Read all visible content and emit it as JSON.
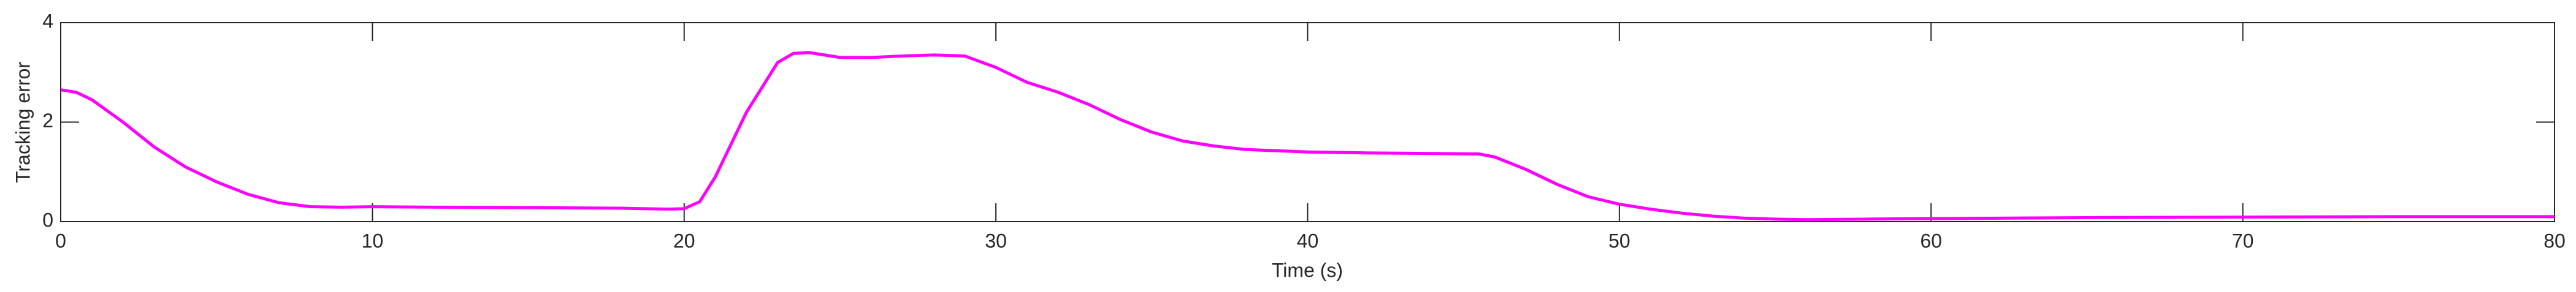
{
  "chart_data": {
    "type": "line",
    "x_label": "Time (s)",
    "y_label": "Tracking error",
    "x": [
      0,
      0.5,
      1,
      2,
      3,
      4,
      5,
      6,
      7,
      8,
      9,
      10,
      12,
      15,
      18,
      19.5,
      20,
      20.5,
      21,
      22,
      23,
      23.5,
      24,
      25,
      26,
      27,
      28,
      29,
      30,
      31,
      32,
      33,
      34,
      35,
      36,
      37,
      38,
      40,
      42,
      44,
      45.5,
      46,
      47,
      48,
      49,
      50,
      51,
      52,
      53,
      54,
      55,
      56,
      58,
      60,
      65,
      70,
      75,
      80
    ],
    "series": [
      {
        "color": "#ff00ff",
        "values": [
          2.65,
          2.6,
          2.45,
          2.0,
          1.5,
          1.1,
          0.8,
          0.55,
          0.38,
          0.3,
          0.29,
          0.3,
          0.29,
          0.28,
          0.27,
          0.25,
          0.26,
          0.4,
          0.9,
          2.2,
          3.2,
          3.38,
          3.4,
          3.3,
          3.3,
          3.33,
          3.35,
          3.33,
          3.1,
          2.8,
          2.6,
          2.35,
          2.05,
          1.8,
          1.62,
          1.52,
          1.45,
          1.4,
          1.38,
          1.37,
          1.36,
          1.3,
          1.05,
          0.75,
          0.5,
          0.35,
          0.25,
          0.17,
          0.11,
          0.07,
          0.05,
          0.04,
          0.05,
          0.06,
          0.08,
          0.09,
          0.1,
          0.1
        ]
      }
    ],
    "xlim": [
      0,
      80
    ],
    "xticks": [
      0,
      10,
      20,
      30,
      40,
      50,
      60,
      70,
      80
    ],
    "ylim": [
      0,
      4
    ],
    "yticks": [
      0,
      2,
      4
    ],
    "grid": false
  }
}
